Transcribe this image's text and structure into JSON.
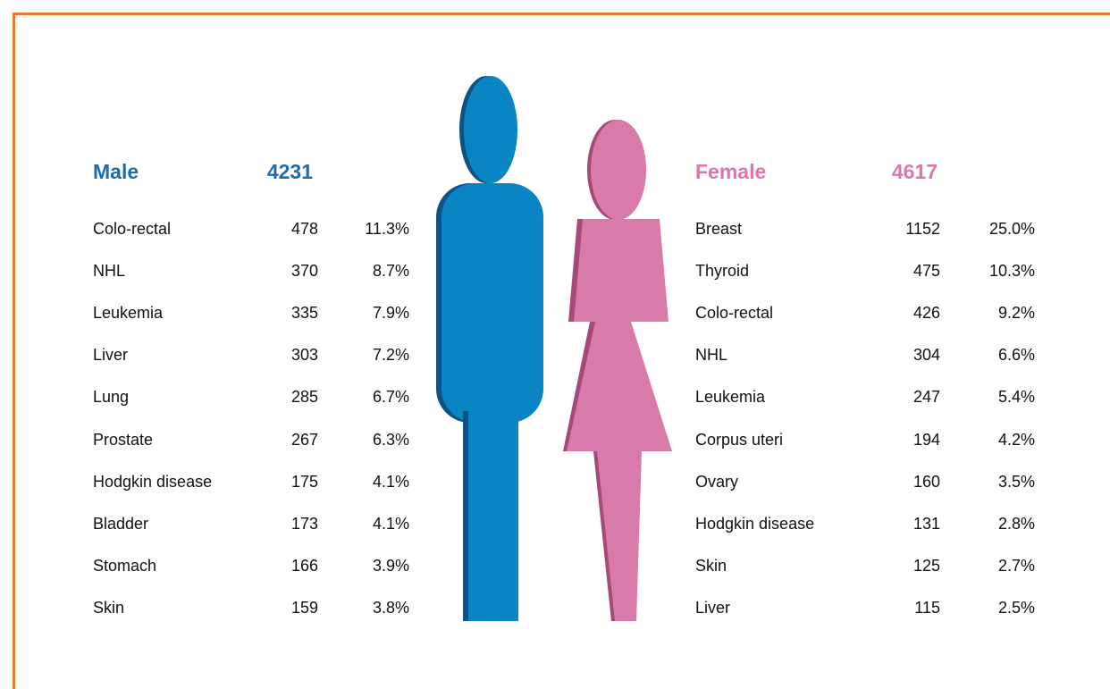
{
  "male": {
    "label": "Male",
    "total": "4231",
    "rows": [
      [
        "Colo-rectal",
        "478",
        "11.3%"
      ],
      [
        "NHL",
        "370",
        "8.7%"
      ],
      [
        "Leukemia",
        "335",
        "7.9%"
      ],
      [
        "Liver",
        "303",
        "7.2%"
      ],
      [
        "Lung",
        "285",
        "6.7%"
      ],
      [
        "Prostate",
        "267",
        "6.3%"
      ],
      [
        "Hodgkin disease",
        "175",
        "4.1%"
      ],
      [
        "Bladder",
        "173",
        "4.1%"
      ],
      [
        "Stomach",
        "166",
        "3.9%"
      ],
      [
        "Skin",
        "159",
        "3.8%"
      ]
    ]
  },
  "female": {
    "label": "Female",
    "total": "4617",
    "rows": [
      [
        "Breast",
        "1152",
        "25.0%"
      ],
      [
        "Thyroid",
        "475",
        "10.3%"
      ],
      [
        "Colo-rectal",
        "426",
        "9.2%"
      ],
      [
        "NHL",
        "304",
        "6.6%"
      ],
      [
        "Leukemia",
        "247",
        "5.4%"
      ],
      [
        "Corpus uteri",
        "194",
        "4.2%"
      ],
      [
        "Ovary",
        "160",
        "3.5%"
      ],
      [
        "Hodgkin disease",
        "131",
        "2.8%"
      ],
      [
        "Skin",
        "125",
        "2.7%"
      ],
      [
        "Liver",
        "115",
        "2.5%"
      ]
    ]
  }
}
